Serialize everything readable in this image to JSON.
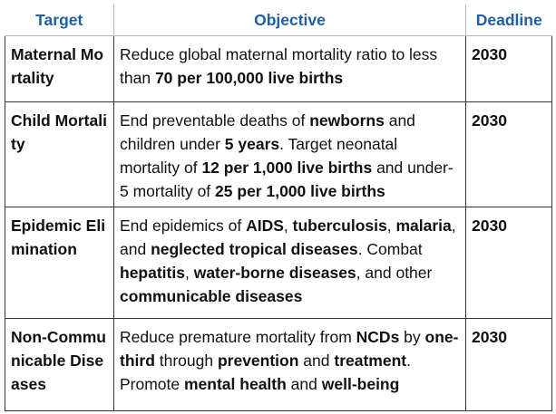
{
  "headers": {
    "target": "Target",
    "objective": "Objective",
    "deadline": "Deadline"
  },
  "colors": {
    "header_text": "#1f5fa6",
    "border": "#333333",
    "text": "#111111"
  },
  "rows": [
    {
      "target": "Maternal Mortality",
      "deadline": "2030",
      "objective": [
        {
          "t": "Reduce global maternal mortality ratio to less than ",
          "b": false
        },
        {
          "t": "70 per 100,000 live births",
          "b": true
        }
      ]
    },
    {
      "target": "Child Mortality",
      "deadline": "2030",
      "objective": [
        {
          "t": "End preventable deaths of ",
          "b": false
        },
        {
          "t": "newborns",
          "b": true
        },
        {
          "t": " and children under ",
          "b": false
        },
        {
          "t": "5 years",
          "b": true
        },
        {
          "t": ". Target neonatal mortality of ",
          "b": false
        },
        {
          "t": "12 per 1,000 live births",
          "b": true
        },
        {
          "t": " and under-5 mortality of ",
          "b": false
        },
        {
          "t": "25 per 1,000 live births",
          "b": true
        }
      ]
    },
    {
      "target": "Epidemic Elimination",
      "deadline": "2030",
      "objective": [
        {
          "t": "End epidemics of ",
          "b": false
        },
        {
          "t": "AIDS",
          "b": true
        },
        {
          "t": ", ",
          "b": false
        },
        {
          "t": "tuberculosis",
          "b": true
        },
        {
          "t": ", ",
          "b": false
        },
        {
          "t": "malaria",
          "b": true
        },
        {
          "t": ", and ",
          "b": false
        },
        {
          "t": "neglected tropical diseases",
          "b": true
        },
        {
          "t": ". Combat ",
          "b": false
        },
        {
          "t": "hepatitis",
          "b": true
        },
        {
          "t": ", ",
          "b": false
        },
        {
          "t": "water-borne diseases",
          "b": true
        },
        {
          "t": ", and other ",
          "b": false
        },
        {
          "t": "communicable diseases",
          "b": true
        }
      ]
    },
    {
      "target": "Non-Communicable Diseases",
      "deadline": "2030",
      "objective": [
        {
          "t": "Reduce premature mortality from ",
          "b": false
        },
        {
          "t": "NCDs",
          "b": true
        },
        {
          "t": " by ",
          "b": false
        },
        {
          "t": "one-third",
          "b": true
        },
        {
          "t": " through ",
          "b": false
        },
        {
          "t": "prevention",
          "b": true
        },
        {
          "t": " and ",
          "b": false
        },
        {
          "t": "treatment",
          "b": true
        },
        {
          "t": ". Promote ",
          "b": false
        },
        {
          "t": "mental health",
          "b": true
        },
        {
          "t": " and ",
          "b": false
        },
        {
          "t": "well-being",
          "b": true
        }
      ]
    }
  ]
}
